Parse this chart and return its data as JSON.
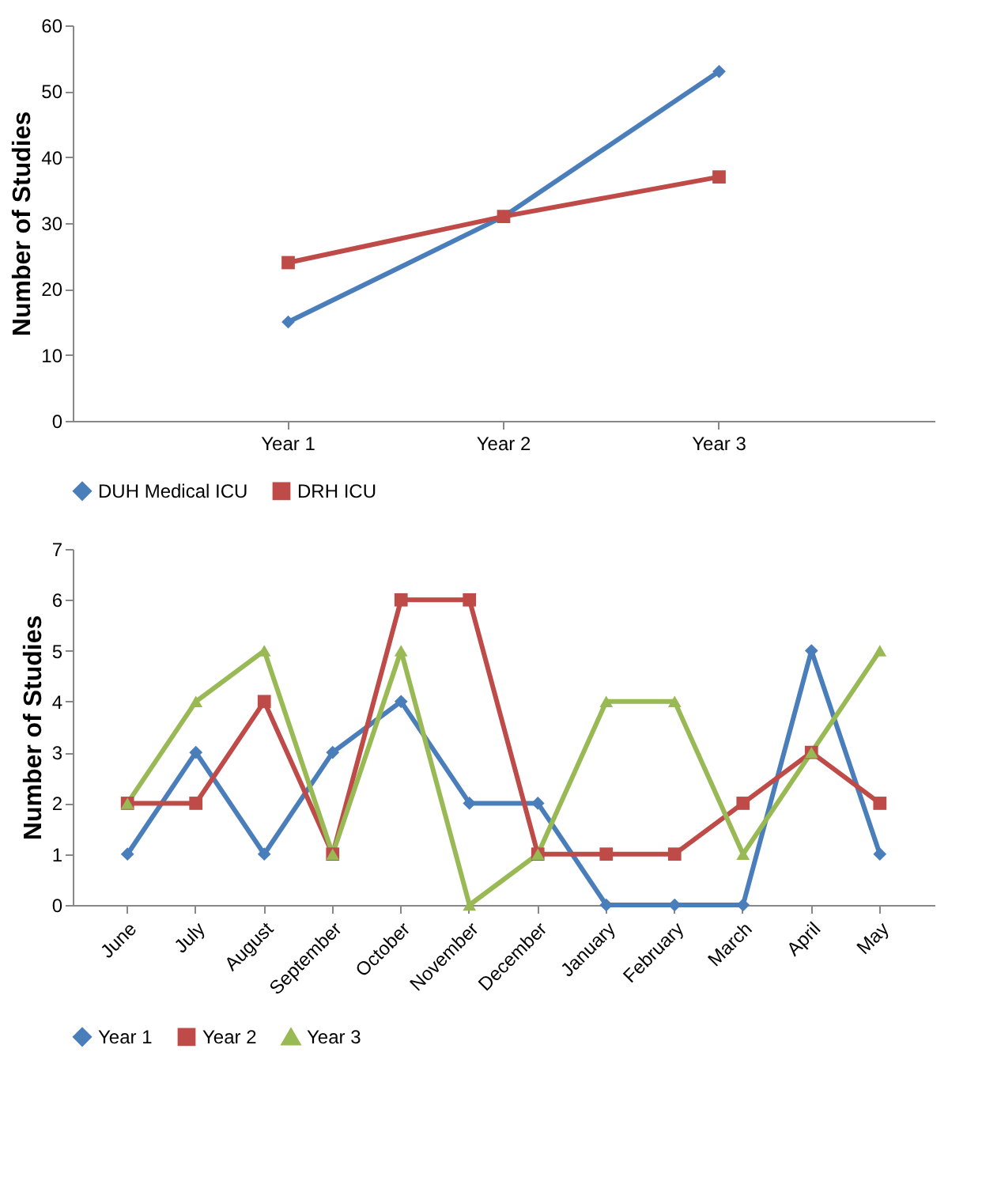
{
  "chart_data": [
    {
      "type": "line",
      "categories": [
        "Year 1",
        "Year 2",
        "Year 3"
      ],
      "ylabel": "Number of Studies",
      "ylim": [
        0,
        60
      ],
      "yticks": [
        0,
        10,
        20,
        30,
        40,
        50,
        60
      ],
      "grid": false,
      "legend": "bottom",
      "line_style": "solid",
      "series": [
        {
          "name": "DUH Medical ICU",
          "color": "#4a7ebb",
          "marker": "diamond",
          "values": [
            15,
            31,
            53
          ]
        },
        {
          "name": "DRH ICU",
          "color": "#be4b48",
          "marker": "square",
          "values": [
            24,
            31,
            37
          ]
        }
      ]
    },
    {
      "type": "line",
      "categories": [
        "June",
        "July",
        "August",
        "September",
        "October",
        "November",
        "December",
        "January",
        "February",
        "March",
        "April",
        "May"
      ],
      "ylabel": "Number of Studies",
      "ylim": [
        0,
        7
      ],
      "yticks": [
        0,
        1,
        2,
        3,
        4,
        5,
        6,
        7
      ],
      "grid": false,
      "legend": "bottom",
      "line_style": "solid",
      "series": [
        {
          "name": "Year 1",
          "color": "#4a7ebb",
          "marker": "diamond",
          "values": [
            1,
            3,
            1,
            3,
            4,
            2,
            2,
            0,
            0,
            0,
            5,
            1
          ]
        },
        {
          "name": "Year 2",
          "color": "#be4b48",
          "marker": "square",
          "values": [
            2,
            2,
            4,
            1,
            6,
            6,
            1,
            1,
            1,
            2,
            3,
            2
          ]
        },
        {
          "name": "Year 3",
          "color": "#98b954",
          "marker": "triangle",
          "values": [
            2,
            4,
            5,
            1,
            5,
            0,
            1,
            4,
            4,
            1,
            3,
            5
          ]
        }
      ]
    }
  ]
}
